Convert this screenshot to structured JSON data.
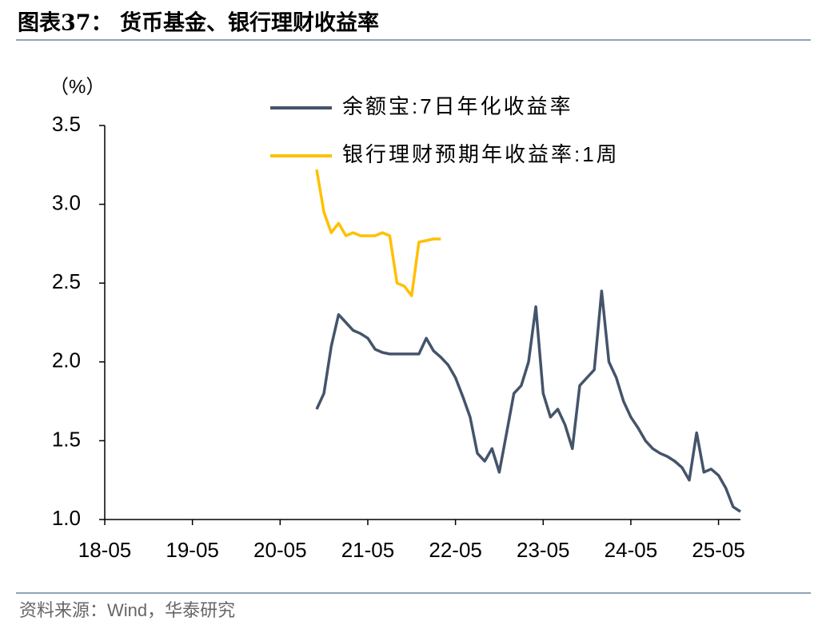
{
  "chart_data": {
    "type": "line",
    "title": "图表37：  货币基金、银行理财收益率",
    "y_label": "（%）",
    "source": "资料来源：Wind，华泰研究",
    "x": [
      "20-10",
      "20-11",
      "20-12",
      "21-01",
      "21-02",
      "21-03",
      "21-04",
      "21-05",
      "21-06",
      "21-07",
      "21-08",
      "21-09",
      "21-10",
      "21-11",
      "21-12",
      "22-01",
      "22-02",
      "22-03",
      "22-04",
      "22-05",
      "22-06",
      "22-07",
      "22-08",
      "22-09",
      "22-10",
      "22-11",
      "22-12",
      "23-01",
      "23-02",
      "23-03",
      "23-04",
      "23-05",
      "23-06",
      "23-07",
      "23-08",
      "23-09",
      "23-10",
      "23-11",
      "23-12",
      "24-01",
      "24-02",
      "24-03",
      "24-04",
      "24-05",
      "24-06",
      "24-07",
      "24-08",
      "24-09",
      "24-10",
      "24-11",
      "24-12",
      "25-01",
      "25-02",
      "25-03",
      "25-04",
      "25-05",
      "25-06",
      "25-07",
      "25-08"
    ],
    "series": [
      {
        "name": "余额宝:7日年化收益率",
        "color": "#44546a",
        "values": [
          1.7,
          1.8,
          2.1,
          2.3,
          2.25,
          2.2,
          2.18,
          2.15,
          2.08,
          2.06,
          2.05,
          2.05,
          2.05,
          2.05,
          2.05,
          2.15,
          2.07,
          2.03,
          1.98,
          1.9,
          1.78,
          1.65,
          1.42,
          1.37,
          1.45,
          1.3,
          1.55,
          1.8,
          1.85,
          2.0,
          2.35,
          1.8,
          1.65,
          1.7,
          1.6,
          1.45,
          1.85,
          1.9,
          1.95,
          2.45,
          2.0,
          1.9,
          1.75,
          1.65,
          1.58,
          1.5,
          1.45,
          1.42,
          1.4,
          1.37,
          1.33,
          1.25,
          1.55,
          1.3,
          1.32,
          1.28,
          1.2,
          1.08,
          1.05
        ]
      },
      {
        "name": "银行理财预期年收益率:1周",
        "color": "#ffc000",
        "values": [
          3.22,
          2.95,
          2.82,
          2.88,
          2.8,
          2.82,
          2.8,
          2.8,
          2.8,
          2.82,
          2.8,
          2.5,
          2.48,
          2.42,
          2.76,
          2.77,
          2.78,
          2.78,
          null,
          null,
          null,
          null,
          null,
          null,
          null,
          null,
          null,
          null,
          null,
          null,
          null,
          null,
          null,
          null,
          null,
          null,
          null,
          null,
          null,
          null,
          null,
          null,
          null,
          null,
          null,
          null,
          null,
          null,
          null,
          null,
          null,
          null,
          null,
          null,
          null,
          null,
          null,
          null,
          null
        ]
      }
    ],
    "xlim": [
      "18-05",
      "25-08"
    ],
    "xticks": [
      "18-05",
      "19-05",
      "20-05",
      "21-05",
      "22-05",
      "23-05",
      "24-05",
      "25-05"
    ],
    "ylim": [
      1,
      3.5
    ],
    "yticks": [
      {
        "value": 1,
        "label": "1.0"
      },
      1.5,
      {
        "value": 2,
        "label": "2.0"
      },
      2.5,
      {
        "value": 3,
        "label": "3.0"
      },
      3.5
    ]
  }
}
